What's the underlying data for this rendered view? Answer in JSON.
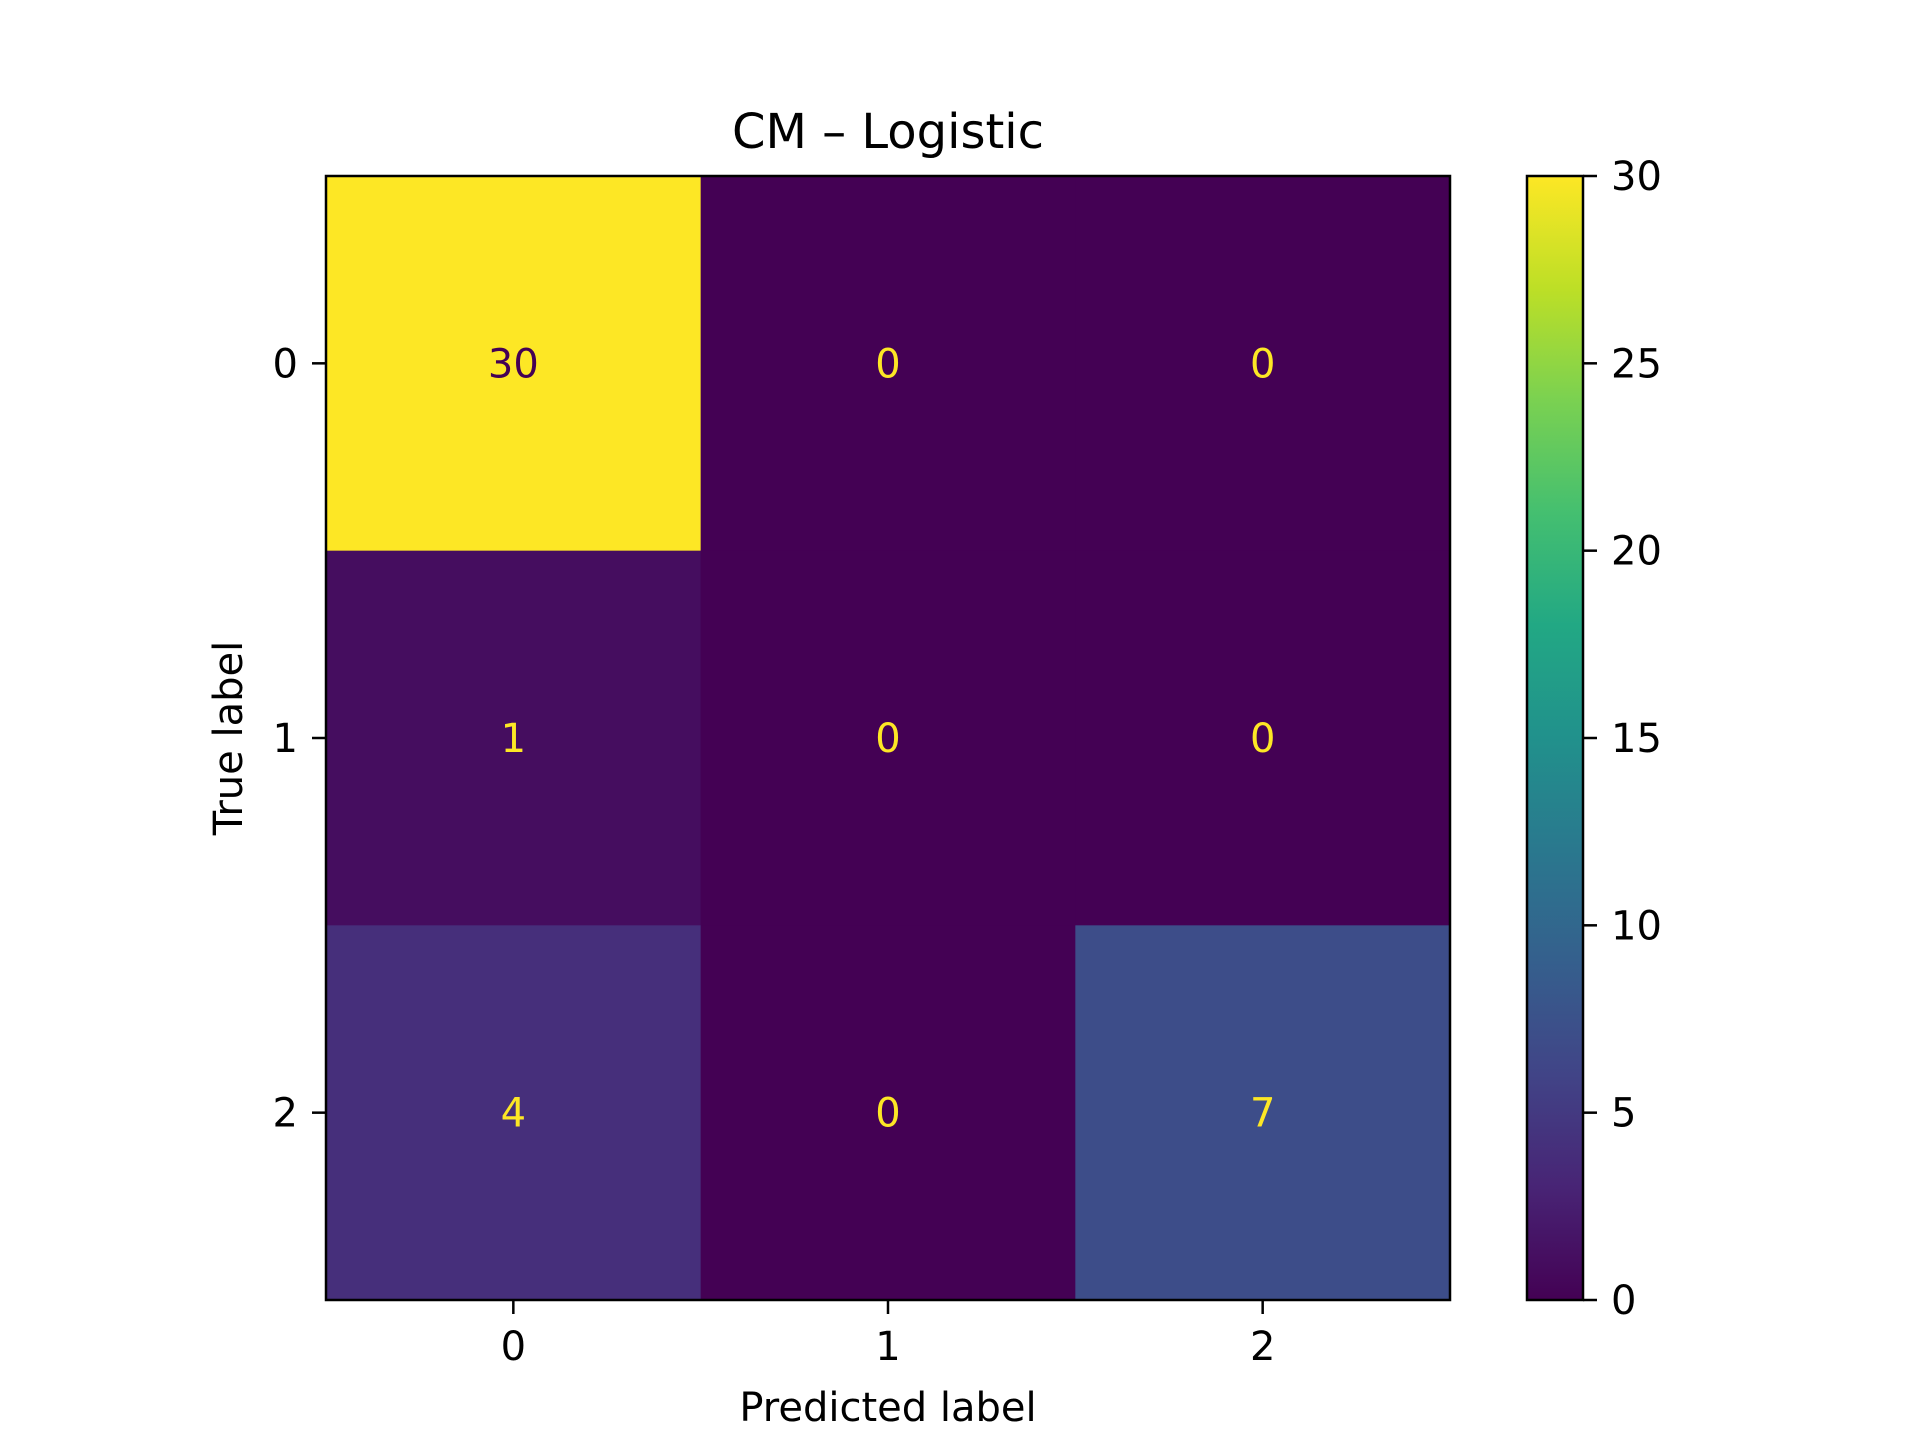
{
  "chart_data": {
    "type": "heatmap",
    "title": "CM – Logistic",
    "xlabel": "Predicted label",
    "ylabel": "True label",
    "x_categories": [
      "0",
      "1",
      "2"
    ],
    "y_categories": [
      "0",
      "1",
      "2"
    ],
    "matrix": [
      [
        30,
        0,
        0
      ],
      [
        1,
        0,
        0
      ],
      [
        4,
        0,
        7
      ]
    ],
    "colormap": "viridis",
    "value_range": [
      0,
      30
    ],
    "colorbar_ticks": [
      0,
      5,
      10,
      15,
      20,
      25,
      30
    ],
    "grid": false,
    "text_color_on_dark": "#fde725",
    "text_color_on_light": "#440154"
  }
}
